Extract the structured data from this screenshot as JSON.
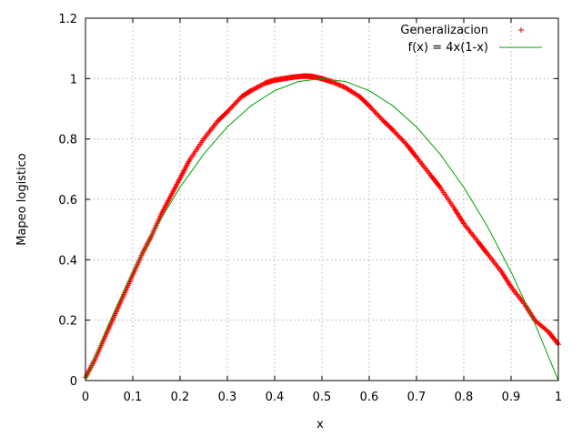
{
  "chart_data": {
    "type": "line",
    "xlabel": "x",
    "ylabel": "Mapeo logistico",
    "xlim": [
      0,
      1
    ],
    "ylim": [
      0,
      1.2
    ],
    "x_ticks": [
      "0",
      "0.1",
      "0.2",
      "0.3",
      "0.4",
      "0.5",
      "0.6",
      "0.7",
      "0.8",
      "0.9",
      "1"
    ],
    "y_ticks": [
      "0",
      "0.2",
      "0.4",
      "0.6",
      "0.8",
      "1",
      "1.2"
    ],
    "grid": true,
    "legend_position": "top-right",
    "series": [
      {
        "name": "Generalizacion",
        "style": "points",
        "marker": "plus",
        "color": "#ff0000",
        "x": [
          0.0,
          0.02,
          0.04,
          0.06,
          0.08,
          0.1,
          0.12,
          0.14,
          0.16,
          0.18,
          0.2,
          0.22,
          0.25,
          0.28,
          0.3,
          0.33,
          0.35,
          0.38,
          0.4,
          0.42,
          0.44,
          0.46,
          0.47,
          0.48,
          0.5,
          0.52,
          0.55,
          0.58,
          0.6,
          0.63,
          0.65,
          0.68,
          0.7,
          0.73,
          0.75,
          0.78,
          0.8,
          0.83,
          0.85,
          0.88,
          0.9,
          0.93,
          0.95,
          0.98,
          1.0
        ],
        "y": [
          0.01,
          0.07,
          0.14,
          0.21,
          0.28,
          0.35,
          0.42,
          0.48,
          0.55,
          0.61,
          0.67,
          0.73,
          0.8,
          0.86,
          0.89,
          0.94,
          0.96,
          0.985,
          0.995,
          1.0,
          1.005,
          1.008,
          1.008,
          1.007,
          1.0,
          0.99,
          0.97,
          0.94,
          0.91,
          0.86,
          0.83,
          0.78,
          0.74,
          0.68,
          0.64,
          0.57,
          0.52,
          0.46,
          0.42,
          0.36,
          0.31,
          0.25,
          0.2,
          0.16,
          0.12
        ]
      },
      {
        "name": "f(x) = 4x(1-x)",
        "style": "line",
        "color": "#00a000",
        "x": [
          0.0,
          0.05,
          0.1,
          0.15,
          0.2,
          0.25,
          0.3,
          0.35,
          0.4,
          0.45,
          0.5,
          0.55,
          0.6,
          0.65,
          0.7,
          0.75,
          0.8,
          0.85,
          0.9,
          0.95,
          1.0
        ],
        "y": [
          0.0,
          0.19,
          0.36,
          0.51,
          0.64,
          0.75,
          0.84,
          0.91,
          0.96,
          0.99,
          1.0,
          0.99,
          0.96,
          0.91,
          0.84,
          0.75,
          0.64,
          0.51,
          0.36,
          0.19,
          0.0
        ]
      }
    ]
  }
}
